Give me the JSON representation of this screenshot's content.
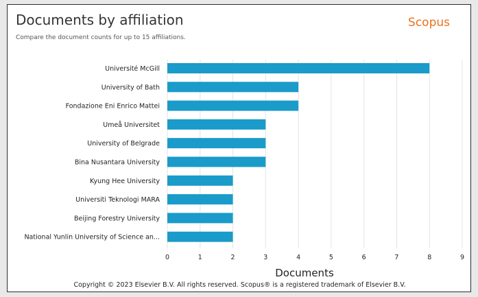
{
  "header": {
    "title": "Documents by affiliation",
    "subtitle": "Compare the document counts for up to 15 affiliations.",
    "brand": "Scopus"
  },
  "footer": {
    "copyright": "Copyright © 2023 Elsevier B.V. All rights reserved. Scopus® is a registered trademark of Elsevier B.V."
  },
  "colors": {
    "bar": "#1a9bc9",
    "brand": "#e9711c"
  },
  "chart_data": {
    "type": "bar",
    "orientation": "horizontal",
    "categories": [
      "Université McGill",
      "University of Bath",
      "Fondazione Eni Enrico Mattei",
      "Umeå Universitet",
      "University of Belgrade",
      "Bina Nusantara University",
      "Kyung Hee University",
      "Universiti Teknologi MARA",
      "Beijing Forestry University",
      "National Yunlin University of Science an..."
    ],
    "values": [
      8,
      4,
      4,
      3,
      3,
      3,
      2,
      2,
      2,
      2
    ],
    "xlabel": "Documents",
    "ylabel": "",
    "xlim": [
      0,
      9
    ],
    "xticks": [
      0,
      1,
      2,
      3,
      4,
      5,
      6,
      7,
      8,
      9
    ],
    "grid": true
  }
}
